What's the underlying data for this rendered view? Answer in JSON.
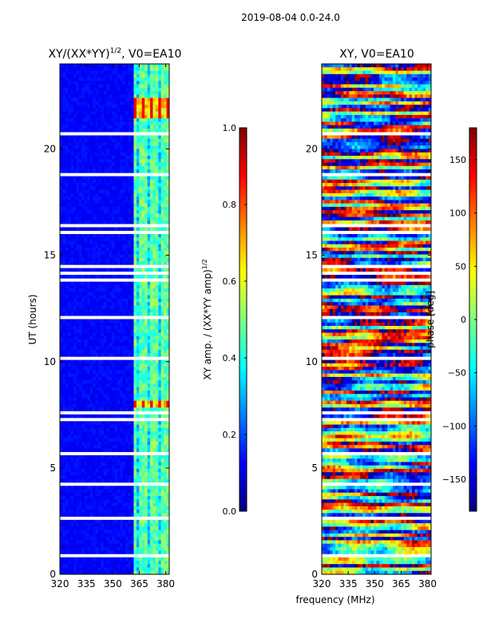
{
  "figure": {
    "suptitle": "2019-08-04 0.0-24.0",
    "xlabel": "frequency (MHz)"
  },
  "chart_data": [
    {
      "type": "heatmap",
      "title": "XY/(XX*YY)^1/2, V0=EA10",
      "title_main": "XY/(XX*YY)",
      "title_sup": "1/2",
      "title_tail": ", V0=EA10",
      "xlabel": "frequency (MHz)",
      "ylabel": "UT (hours)",
      "xlim": [
        320,
        382
      ],
      "ylim": [
        0,
        24
      ],
      "x_ticks": [
        320,
        335,
        350,
        365,
        380
      ],
      "y_ticks": [
        0,
        5,
        10,
        15,
        20
      ],
      "colorbar": {
        "label_main": "XY amp. / (XX*YY amp)",
        "label_sup": "1/2",
        "range": [
          0.0,
          1.0
        ],
        "ticks": [
          "0.0",
          "0.2",
          "0.4",
          "0.6",
          "0.8",
          "1.0"
        ],
        "colormap": "jet"
      },
      "features": {
        "background_value": 0.1,
        "bright_band_mhz": [
          362,
          382
        ],
        "hotspot_hours": [
          [
            7.8,
            8.2
          ],
          [
            21.5,
            22.4
          ]
        ]
      }
    },
    {
      "type": "heatmap",
      "title": "XY, V0=EA10",
      "xlabel": "frequency (MHz)",
      "ylabel": "",
      "xlim": [
        320,
        382
      ],
      "ylim": [
        0,
        24
      ],
      "x_ticks": [
        320,
        335,
        350,
        365,
        380
      ],
      "y_ticks": [
        0,
        5,
        10,
        15,
        20
      ],
      "colorbar": {
        "label": "phase [deg]",
        "range": [
          -180,
          180
        ],
        "ticks": [
          "-150",
          "-100",
          "-50",
          "0",
          "50",
          "100",
          "150"
        ],
        "colormap": "jet"
      }
    }
  ]
}
